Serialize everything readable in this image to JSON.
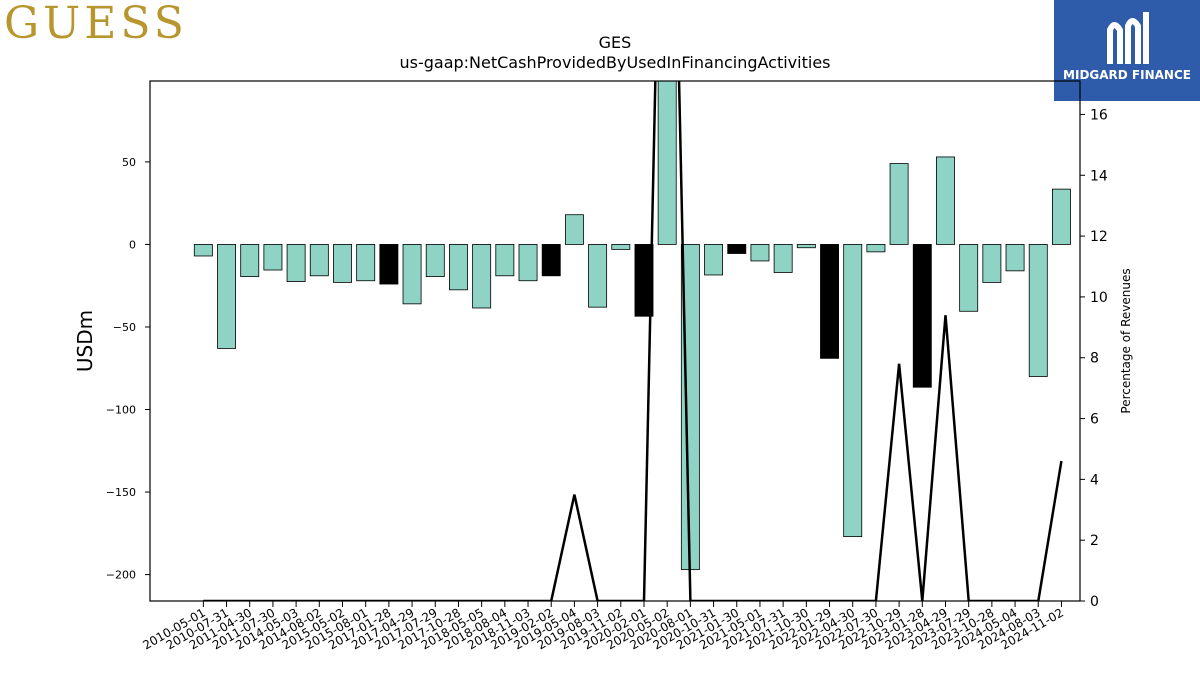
{
  "brand": {
    "logo_text": "GUESS",
    "badge_text": "MIDGARD FINANCE"
  },
  "chart_data": {
    "type": "bar",
    "title": "GES",
    "subtitle": "us-gaap:NetCashProvidedByUsedInFinancingActivities",
    "ylabel": "USDm",
    "y2label": "Percentage of Revenues",
    "ylim": [
      -216,
      99
    ],
    "y2lim": [
      0,
      17.1
    ],
    "yticks": [
      -200,
      -150,
      -100,
      -50,
      0,
      50
    ],
    "y2ticks": [
      0,
      2,
      4,
      6,
      8,
      10,
      12,
      14,
      16
    ],
    "categories": [
      "2010-05-01",
      "2010-07-31",
      "2011-04-30",
      "2011-07-30",
      "2014-05-03",
      "2014-08-02",
      "2015-05-02",
      "2015-08-01",
      "2017-01-28",
      "2017-04-29",
      "2017-07-29",
      "2017-10-28",
      "2018-05-05",
      "2018-08-04",
      "2018-11-03",
      "2019-02-02",
      "2019-05-04",
      "2019-08-03",
      "2019-11-02",
      "2020-02-01",
      "2020-05-02",
      "2020-08-01",
      "2020-10-31",
      "2021-01-30",
      "2021-05-01",
      "2021-07-31",
      "2021-10-30",
      "2022-01-29",
      "2022-04-30",
      "2022-07-30",
      "2022-10-29",
      "2023-01-28",
      "2023-04-29",
      "2023-07-29",
      "2023-10-28",
      "2024-05-04",
      "2024-08-03",
      "2024-11-02"
    ],
    "values": [
      -7,
      -63,
      -19.5,
      -15.5,
      -22.5,
      -19,
      -23,
      -22,
      -24,
      -36,
      -19.5,
      -27.5,
      -38.5,
      -19,
      -22,
      -19,
      18,
      -38,
      -3,
      -43.5,
      109,
      -197,
      -18.5,
      -5.5,
      -10,
      -17,
      -2,
      -69,
      -177,
      -4.5,
      49,
      -86.5,
      53,
      -40.5,
      -23,
      -16,
      -80,
      33.5
    ],
    "highlight": [
      false,
      false,
      false,
      false,
      false,
      false,
      false,
      false,
      true,
      false,
      false,
      false,
      false,
      false,
      false,
      true,
      false,
      false,
      false,
      true,
      false,
      false,
      false,
      true,
      false,
      false,
      false,
      true,
      false,
      false,
      false,
      true,
      false,
      false,
      false,
      false,
      false,
      false
    ],
    "pct_of_revenue": [
      0,
      0,
      0,
      0,
      0,
      0,
      0,
      0,
      0,
      0,
      0,
      0,
      0,
      0,
      0,
      0,
      3.5,
      0,
      0,
      0,
      35,
      0,
      0,
      0,
      0,
      0,
      0,
      0,
      0,
      0,
      7.8,
      0,
      9.4,
      0,
      0,
      0,
      0,
      4.6
    ],
    "colors": {
      "bar": "#8fd3c5",
      "highlight": "#000000",
      "line": "#000000"
    }
  }
}
